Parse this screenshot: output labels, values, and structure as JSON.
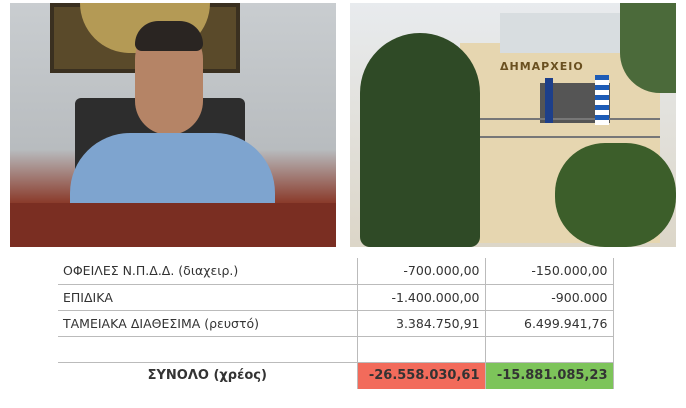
{
  "photos": {
    "building_sign": "ΔΗΜΑΡΧΕΙΟ"
  },
  "table": {
    "rows": [
      {
        "label": "ΟΦΕΙΛΕΣ Ν.Π.Δ.Δ. (διαχειρ.)",
        "a": "-700.000,00",
        "b": "-150.000,00"
      },
      {
        "label": "ΕΠΙΔΙΚΑ",
        "a": "-1.400.000,00",
        "b": "-900.000"
      },
      {
        "label": "ΤΑΜΕΙΑΚΑ ΔΙΑΘΕΣΙΜΑ (ρευστό)",
        "a": "3.384.750,91",
        "b": "6.499.941,76"
      },
      {
        "label": "",
        "a": "",
        "b": ""
      }
    ],
    "total": {
      "label": "ΣΥΝΟΛΟ (χρέος)",
      "a": "-26.558.030,61",
      "b": "-15.881.085,23",
      "a_color": "#f26b5b",
      "b_color": "#7dc45a"
    }
  }
}
